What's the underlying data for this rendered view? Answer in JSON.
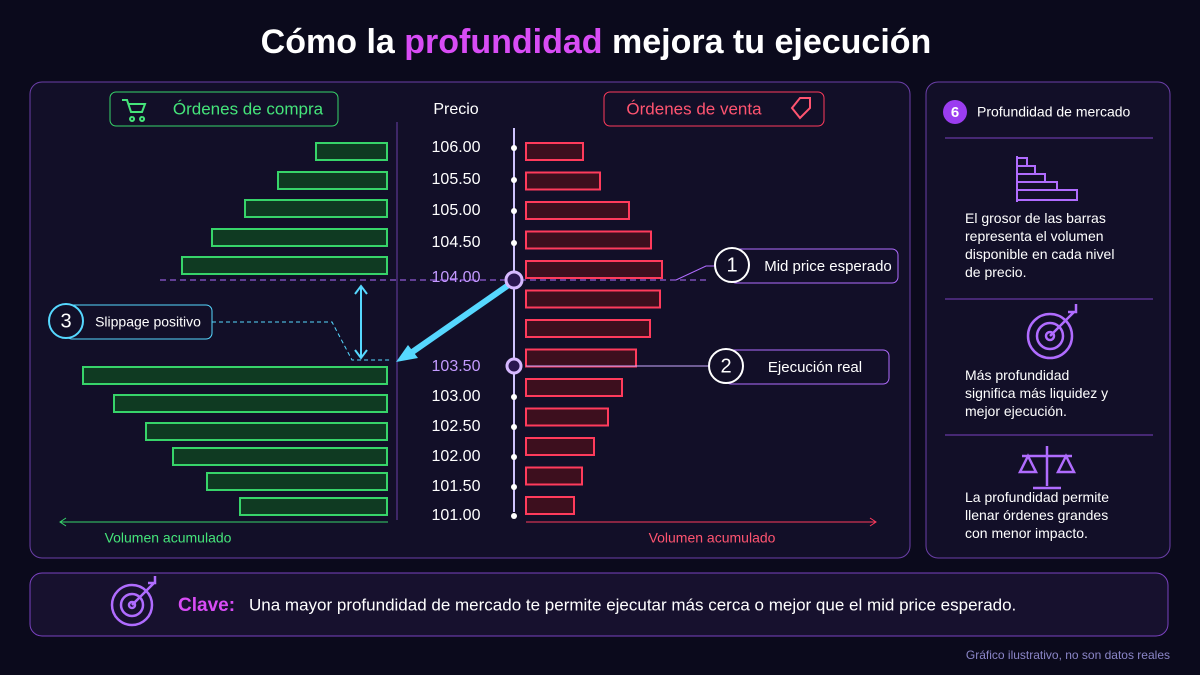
{
  "title": {
    "before": "Cómo la ",
    "highlight": "profundidad",
    "after": " mejora tu ejecución"
  },
  "book": {
    "buy_label": "Órdenes de compra",
    "price_label": "Precio",
    "sell_label": "Órdenes de venta",
    "prices": [
      "106.00",
      "105.50",
      "105.00",
      "104.50",
      "104.00",
      "103.50",
      "103.00",
      "102.50",
      "102.00",
      "101.50",
      "101.00"
    ],
    "buy_above": [
      71,
      109,
      142,
      175,
      205
    ],
    "buy_below": [
      304,
      273,
      241,
      214,
      180,
      147
    ],
    "sell": [
      57,
      74,
      103,
      125,
      136,
      134,
      124,
      110,
      96,
      82,
      68,
      56,
      48
    ],
    "buy_axis": "Volumen acumulado",
    "sell_axis": "Volumen acumulado"
  },
  "callouts": [
    {
      "num": "1",
      "text": "Mid price esperado"
    },
    {
      "num": "2",
      "text": "Ejecución real"
    },
    {
      "num": "3",
      "text": "Slippage positivo"
    }
  ],
  "side": {
    "num": "6",
    "title": "Profundidad de mercado",
    "items": [
      "El grosor de las barras representa el volumen disponible en cada nivel de precio.",
      "Más profundidad significa más liquidez y mejor ejecución.",
      "La profundidad permite llenar órdenes grandes con menor impacto."
    ]
  },
  "key": {
    "label": "Clave:",
    "text": "Una mayor profundidad de mercado te permite ejecutar más cerca o mejor que el mid price esperado."
  },
  "footer": "Gráfico ilustrativo, no son datos reales"
}
